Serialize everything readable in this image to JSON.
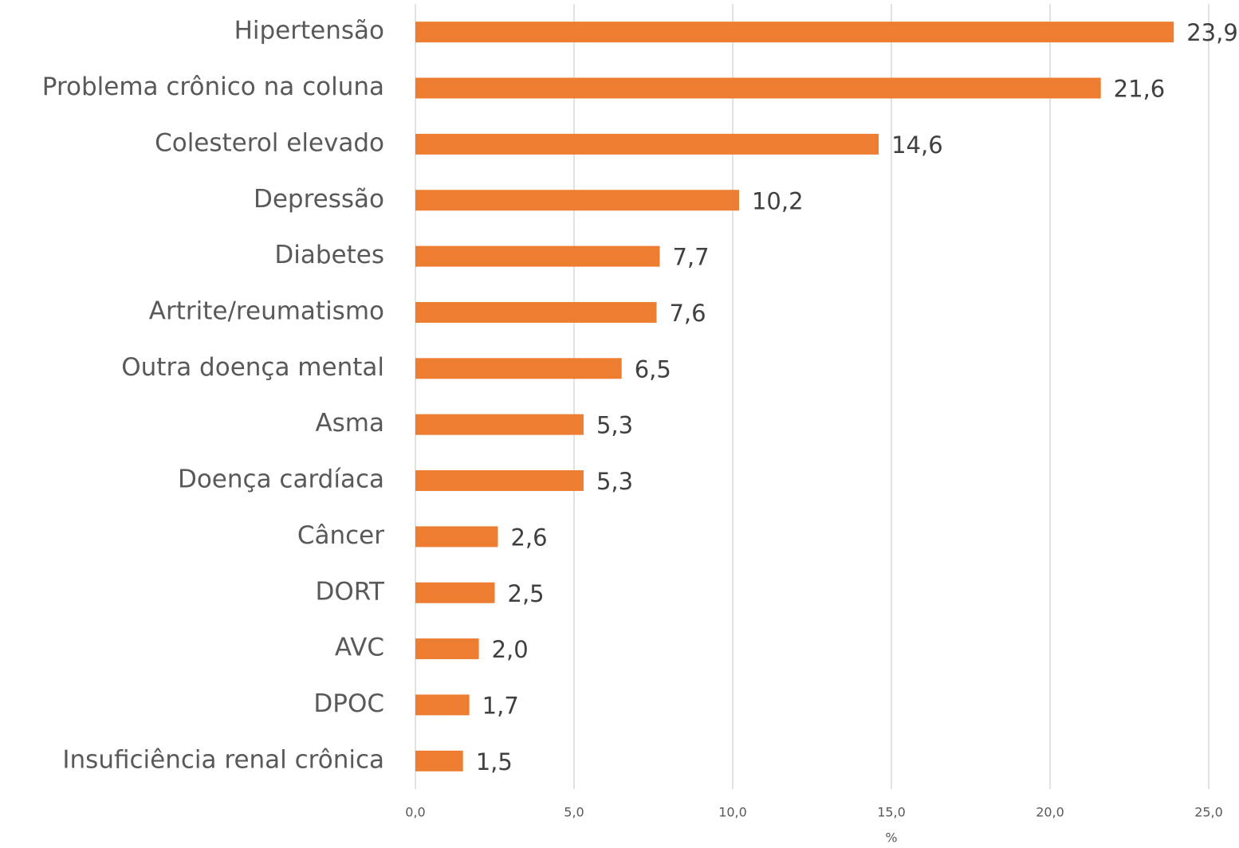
{
  "chart_data": {
    "type": "bar",
    "orientation": "horizontal",
    "categories": [
      "Hipertensão",
      "Problema crônico na coluna",
      "Colesterol elevado",
      "Depressão",
      "Diabetes",
      "Artrite/reumatismo",
      "Outra doença mental",
      "Asma",
      "Doença cardíaca",
      "Câncer",
      "DORT",
      "AVC",
      "DPOC",
      "Insuficiência renal crônica"
    ],
    "values": [
      23.9,
      21.6,
      14.6,
      10.2,
      7.7,
      7.6,
      6.5,
      5.3,
      5.3,
      2.6,
      2.5,
      2.0,
      1.7,
      1.5
    ],
    "value_labels": [
      "23,9",
      "21,6",
      "14,6",
      "10,2",
      "7,7",
      "7,6",
      "6,5",
      "5,3",
      "5,3",
      "2,6",
      "2,5",
      "2,0",
      "1,7",
      "1,5"
    ],
    "color": "#ed7d31",
    "xlabel": "%",
    "xlim": [
      0,
      25
    ],
    "xticks": [
      {
        "value": 0,
        "label": "0,0"
      },
      {
        "value": 5,
        "label": "5,0"
      },
      {
        "value": 10,
        "label": "10,0"
      },
      {
        "value": 15,
        "label": "15,0"
      },
      {
        "value": 20,
        "label": "20,0"
      },
      {
        "value": 25,
        "label": "25,0"
      }
    ],
    "grid": true
  }
}
